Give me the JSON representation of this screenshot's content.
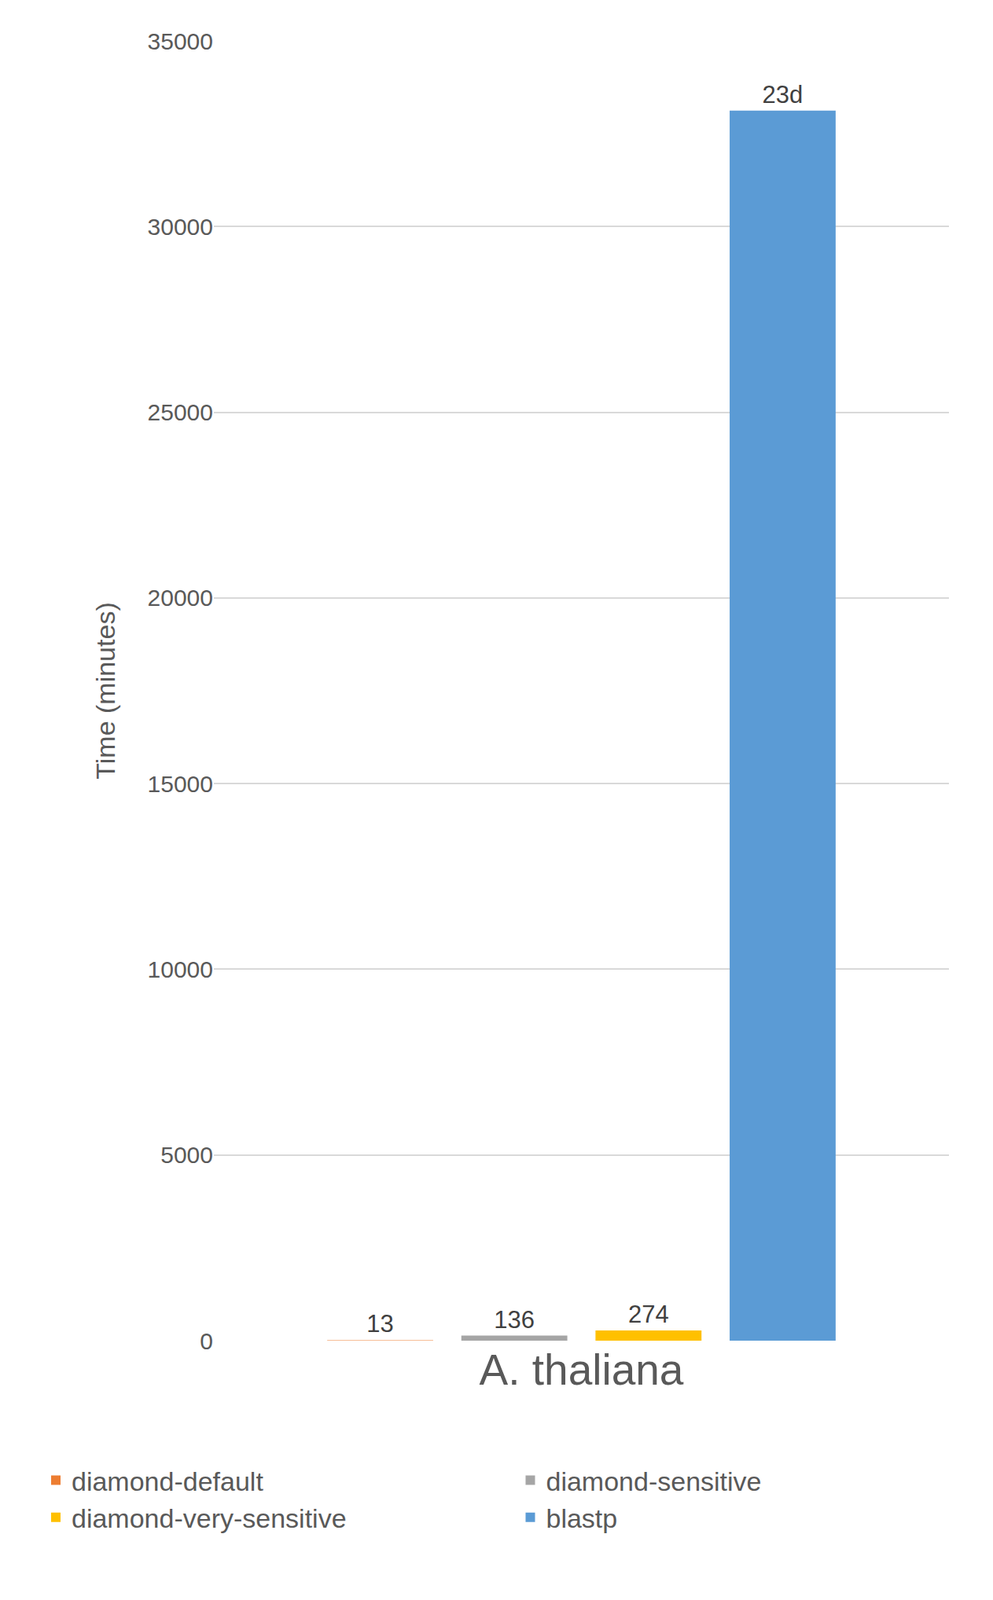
{
  "chart_data": {
    "type": "bar",
    "y_label": "Time (minutes)",
    "categories": [
      "A. thaliana"
    ],
    "series": [
      {
        "name": "diamond-default",
        "color": "#ED7D31",
        "values": [
          13
        ]
      },
      {
        "name": "diamond-sensitive",
        "color": "#A5A5A5",
        "values": [
          136
        ]
      },
      {
        "name": "diamond-very-sensitive",
        "color": "#FFC000",
        "values": [
          274
        ]
      },
      {
        "name": "blastp",
        "color": "#5B9BD5",
        "values": [
          33120
        ],
        "value_labels": [
          "23d"
        ]
      }
    ],
    "ylim": [
      0,
      35000
    ],
    "yticks": [
      0,
      5000,
      10000,
      15000,
      20000,
      25000,
      30000,
      35000
    ],
    "grid": true,
    "legend": "bottom",
    "data_labels": true
  }
}
